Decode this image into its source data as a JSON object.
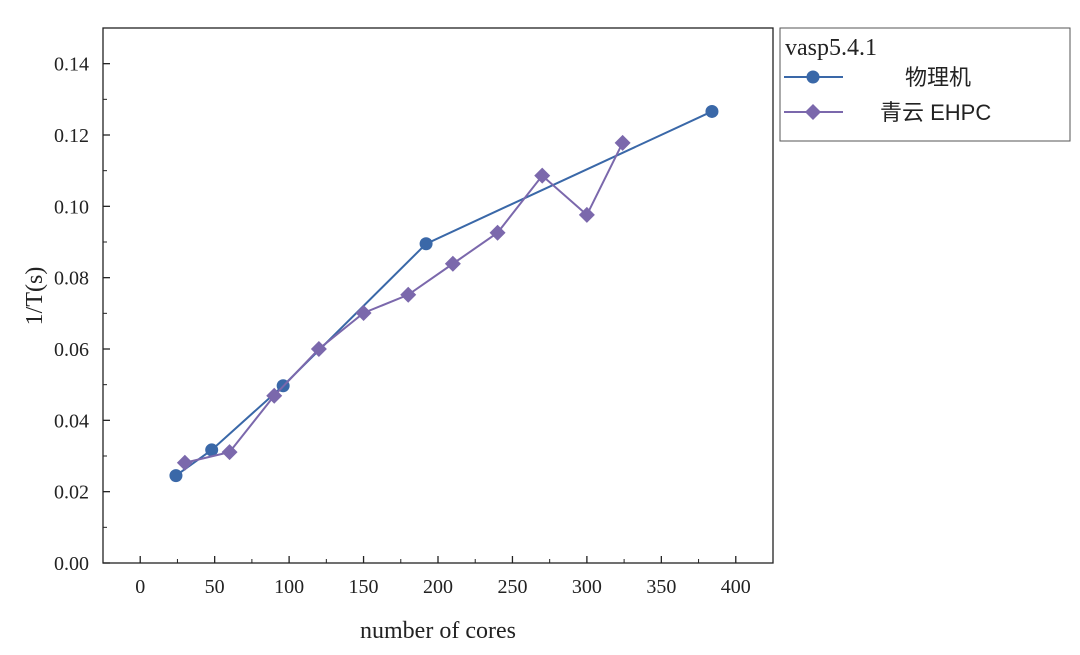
{
  "chart_data": {
    "type": "line",
    "title": "",
    "xlabel": "number of cores",
    "ylabel": "1/T(s)",
    "xlim": [
      -25,
      425
    ],
    "ylim": [
      0,
      0.15
    ],
    "xticks": [
      0,
      50,
      100,
      150,
      200,
      250,
      300,
      350,
      400
    ],
    "xtick_labels": [
      "0",
      "50",
      "100",
      "150",
      "200",
      "250",
      "300",
      "350",
      "400"
    ],
    "yticks": [
      0,
      0.02,
      0.04,
      0.06,
      0.08,
      0.1,
      0.12,
      0.14
    ],
    "ytick_labels": [
      "0.00",
      "0.02",
      "0.04",
      "0.06",
      "0.08",
      "0.10",
      "0.12",
      "0.14"
    ],
    "grid": false,
    "legend": {
      "title": "vasp5.4.1",
      "placement": "outside-top-right"
    },
    "series": [
      {
        "name": "物理机",
        "color": "#3a68a8",
        "marker": "circle",
        "x": [
          24,
          48,
          96,
          192,
          384
        ],
        "y": [
          0.0245,
          0.0317,
          0.0497,
          0.0895,
          0.1266
        ]
      },
      {
        "name": "青云 EHPC",
        "color": "#7b68ac",
        "marker": "diamond",
        "x": [
          30,
          60,
          90,
          120,
          150,
          180,
          210,
          240,
          270,
          300,
          324
        ],
        "y": [
          0.0281,
          0.0311,
          0.0469,
          0.06,
          0.0701,
          0.0752,
          0.0839,
          0.0926,
          0.1086,
          0.0976,
          0.1178
        ]
      }
    ]
  }
}
